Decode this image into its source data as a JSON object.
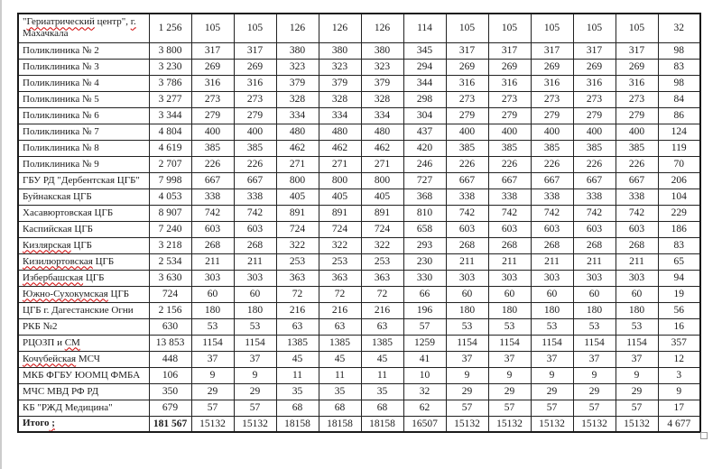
{
  "colors": {
    "spellcheck_underline": "#d00000",
    "table_border": "#1a1a1a",
    "page_edge": "#cccccc"
  },
  "table": {
    "num_value_columns": 13,
    "rows": [
      {
        "label": "\"Гериатрический центр\", г. Махачкала",
        "wrap": true,
        "misspelled": [
          "Гериатрический",
          "г."
        ],
        "values": [
          "1 256",
          "105",
          "105",
          "126",
          "126",
          "126",
          "114",
          "105",
          "105",
          "105",
          "105",
          "105",
          "32"
        ]
      },
      {
        "label": "Поликлиника № 2",
        "values": [
          "3 800",
          "317",
          "317",
          "380",
          "380",
          "380",
          "345",
          "317",
          "317",
          "317",
          "317",
          "317",
          "98"
        ]
      },
      {
        "label": "Поликлиника № 3",
        "values": [
          "3 230",
          "269",
          "269",
          "323",
          "323",
          "323",
          "294",
          "269",
          "269",
          "269",
          "269",
          "269",
          "83"
        ]
      },
      {
        "label": "Поликлиника № 4",
        "values": [
          "3 786",
          "316",
          "316",
          "379",
          "379",
          "379",
          "344",
          "316",
          "316",
          "316",
          "316",
          "316",
          "98"
        ]
      },
      {
        "label": "Поликлиника № 5",
        "values": [
          "3 277",
          "273",
          "273",
          "328",
          "328",
          "328",
          "298",
          "273",
          "273",
          "273",
          "273",
          "273",
          "84"
        ]
      },
      {
        "label": "Поликлиника № 6",
        "values": [
          "3 344",
          "279",
          "279",
          "334",
          "334",
          "334",
          "304",
          "279",
          "279",
          "279",
          "279",
          "279",
          "86"
        ]
      },
      {
        "label": "Поликлиника № 7",
        "values": [
          "4 804",
          "400",
          "400",
          "480",
          "480",
          "480",
          "437",
          "400",
          "400",
          "400",
          "400",
          "400",
          "124"
        ]
      },
      {
        "label": "Поликлиника № 8",
        "values": [
          "4 619",
          "385",
          "385",
          "462",
          "462",
          "462",
          "420",
          "385",
          "385",
          "385",
          "385",
          "385",
          "119"
        ]
      },
      {
        "label": "Поликлиника № 9",
        "values": [
          "2 707",
          "226",
          "226",
          "271",
          "271",
          "271",
          "246",
          "226",
          "226",
          "226",
          "226",
          "226",
          "70"
        ]
      },
      {
        "label": "ГБУ РД \"Дербентская ЦГБ\"",
        "values": [
          "7 998",
          "667",
          "667",
          "800",
          "800",
          "800",
          "727",
          "667",
          "667",
          "667",
          "667",
          "667",
          "206"
        ]
      },
      {
        "label": "Буйнакская ЦГБ",
        "values": [
          "4 053",
          "338",
          "338",
          "405",
          "405",
          "405",
          "368",
          "338",
          "338",
          "338",
          "338",
          "338",
          "104"
        ]
      },
      {
        "label": "Хасавюртовская ЦГБ",
        "values": [
          "8 907",
          "742",
          "742",
          "891",
          "891",
          "891",
          "810",
          "742",
          "742",
          "742",
          "742",
          "742",
          "229"
        ]
      },
      {
        "label": "Каспийская ЦГБ",
        "values": [
          "7 240",
          "603",
          "603",
          "724",
          "724",
          "724",
          "658",
          "603",
          "603",
          "603",
          "603",
          "603",
          "186"
        ]
      },
      {
        "label": "Кизлярская ЦГБ",
        "misspelled": [
          "Кизлярская"
        ],
        "values": [
          "3 218",
          "268",
          "268",
          "322",
          "322",
          "322",
          "293",
          "268",
          "268",
          "268",
          "268",
          "268",
          "83"
        ]
      },
      {
        "label": "Кизилюртовская ЦГБ",
        "misspelled": [
          "Кизилюртовская"
        ],
        "values": [
          "2 534",
          "211",
          "211",
          "253",
          "253",
          "253",
          "230",
          "211",
          "211",
          "211",
          "211",
          "211",
          "65"
        ]
      },
      {
        "label": "Избербашская ЦГБ",
        "misspelled": [
          "Избербашская"
        ],
        "values": [
          "3 630",
          "303",
          "303",
          "363",
          "363",
          "363",
          "330",
          "303",
          "303",
          "303",
          "303",
          "303",
          "94"
        ]
      },
      {
        "label": "Южно-Сухокумская ЦГБ",
        "misspelled": [
          "Южно-Сухокумская"
        ],
        "values": [
          "724",
          "60",
          "60",
          "72",
          "72",
          "72",
          "66",
          "60",
          "60",
          "60",
          "60",
          "60",
          "19"
        ]
      },
      {
        "label": "ЦГБ г. Дагестанские Огни",
        "values": [
          "2 156",
          "180",
          "180",
          "216",
          "216",
          "216",
          "196",
          "180",
          "180",
          "180",
          "180",
          "180",
          "56"
        ]
      },
      {
        "label": "РКБ №2",
        "values": [
          "630",
          "53",
          "53",
          "63",
          "63",
          "63",
          "57",
          "53",
          "53",
          "53",
          "53",
          "53",
          "16"
        ]
      },
      {
        "label": "РЦОЗП и СМ",
        "misspelled": [
          "СМ"
        ],
        "values": [
          "13 853",
          "1154",
          "1154",
          "1385",
          "1385",
          "1385",
          "1259",
          "1154",
          "1154",
          "1154",
          "1154",
          "1154",
          "357"
        ]
      },
      {
        "label": "Кочубейская МСЧ",
        "misspelled": [
          "Кочубейская"
        ],
        "values": [
          "448",
          "37",
          "37",
          "45",
          "45",
          "45",
          "41",
          "37",
          "37",
          "37",
          "37",
          "37",
          "12"
        ]
      },
      {
        "label": "МКБ ФГБУ ЮОМЦ ФМБА",
        "values": [
          "106",
          "9",
          "9",
          "11",
          "11",
          "11",
          "10",
          "9",
          "9",
          "9",
          "9",
          "9",
          "3"
        ]
      },
      {
        "label": "МЧС МВД РФ РД",
        "values": [
          "350",
          "29",
          "29",
          "35",
          "35",
          "35",
          "32",
          "29",
          "29",
          "29",
          "29",
          "29",
          "9"
        ]
      },
      {
        "label": "КБ \"РЖД Медицина\"",
        "values": [
          "679",
          "57",
          "57",
          "68",
          "68",
          "68",
          "62",
          "57",
          "57",
          "57",
          "57",
          "57",
          "17"
        ]
      },
      {
        "label": "Итого ;",
        "total": true,
        "misspelled": [
          " ;"
        ],
        "values": [
          "181 567",
          "15132",
          "15132",
          "18158",
          "18158",
          "18158",
          "16507",
          "15132",
          "15132",
          "15132",
          "15132",
          "15132",
          "4 677"
        ]
      }
    ]
  }
}
